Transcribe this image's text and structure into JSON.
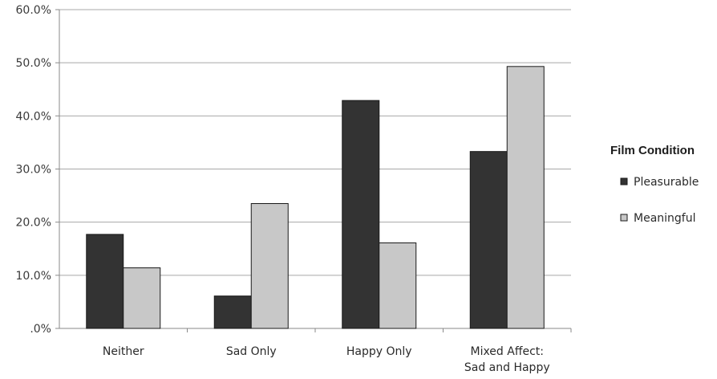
{
  "chart_data": {
    "type": "bar",
    "categories": [
      [
        "Neither"
      ],
      [
        "Sad Only"
      ],
      [
        "Happy Only"
      ],
      [
        "Mixed Affect:",
        "Sad and Happy"
      ]
    ],
    "series": [
      {
        "name": "Pleasurable",
        "values": [
          17.7,
          6.1,
          42.9,
          33.3
        ],
        "color": "#333333"
      },
      {
        "name": "Meaningful",
        "values": [
          11.4,
          23.5,
          16.1,
          49.3
        ],
        "color": "#c8c8c8"
      }
    ],
    "ylim": [
      0,
      60
    ],
    "yticks": [
      0,
      10,
      20,
      30,
      40,
      50,
      60
    ],
    "ytick_labels": [
      ".0%",
      "10.0%",
      "20.0%",
      "30.0%",
      "40.0%",
      "50.0%",
      "60.0%"
    ],
    "grid": true,
    "title": "",
    "xlabel": "",
    "ylabel": "",
    "legend": {
      "title": "Film Condition",
      "placement": "right"
    }
  }
}
